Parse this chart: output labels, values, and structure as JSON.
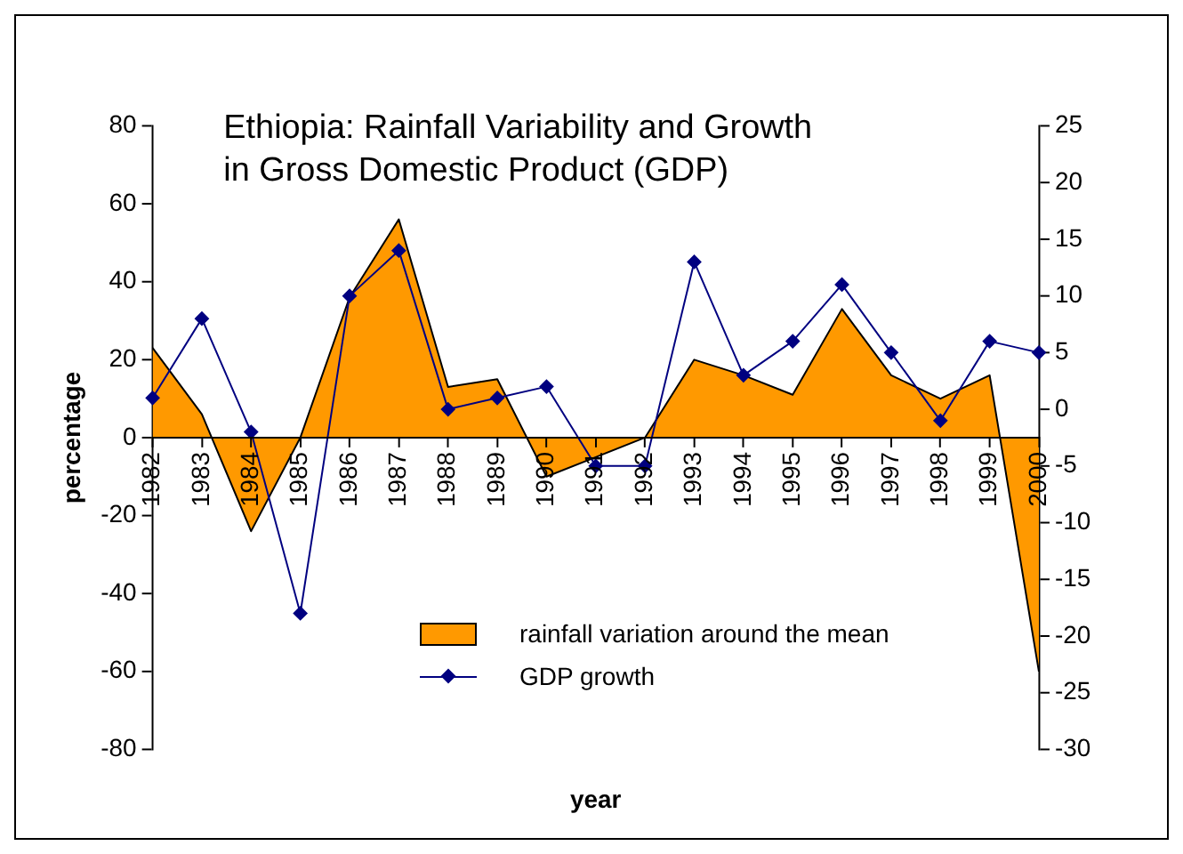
{
  "chart_data": {
    "type": "area",
    "title": "Ethiopia: Rainfall Variability and Growth in Gross Domestic Product (GDP)",
    "xlabel": "year",
    "ylabel": "percentage",
    "categories": [
      "1982",
      "1983",
      "1984",
      "1985",
      "1986",
      "1987",
      "1988",
      "1989",
      "1990",
      "1991",
      "1992",
      "1993",
      "1994",
      "1995",
      "1996",
      "1997",
      "1998",
      "1999",
      "2000"
    ],
    "series": [
      {
        "name": "rainfall variation around the mean",
        "color": "#ff9900",
        "values": [
          23,
          6,
          -24,
          0,
          36,
          56,
          13,
          15,
          -10,
          -5,
          0,
          20,
          16,
          11,
          33,
          16,
          10,
          16,
          -60
        ]
      },
      {
        "name": "GDP growth",
        "type": "line",
        "axis": "y2",
        "color": "#000080",
        "marker": "diamond",
        "values": [
          1,
          8,
          -2,
          -18,
          10,
          14,
          0,
          1,
          2,
          -5,
          -5,
          13,
          3,
          6,
          11,
          5,
          -1,
          6,
          5
        ]
      }
    ],
    "ylim": [
      -80,
      80
    ],
    "yticks": [
      -80,
      -60,
      -40,
      -20,
      0,
      20,
      40,
      60,
      80
    ],
    "y2lim": [
      -30,
      25
    ],
    "y2ticks": [
      -30,
      -25,
      -20,
      -15,
      -10,
      -5,
      0,
      5,
      10,
      15,
      20,
      25
    ],
    "grid": false,
    "legend": "bottom"
  }
}
